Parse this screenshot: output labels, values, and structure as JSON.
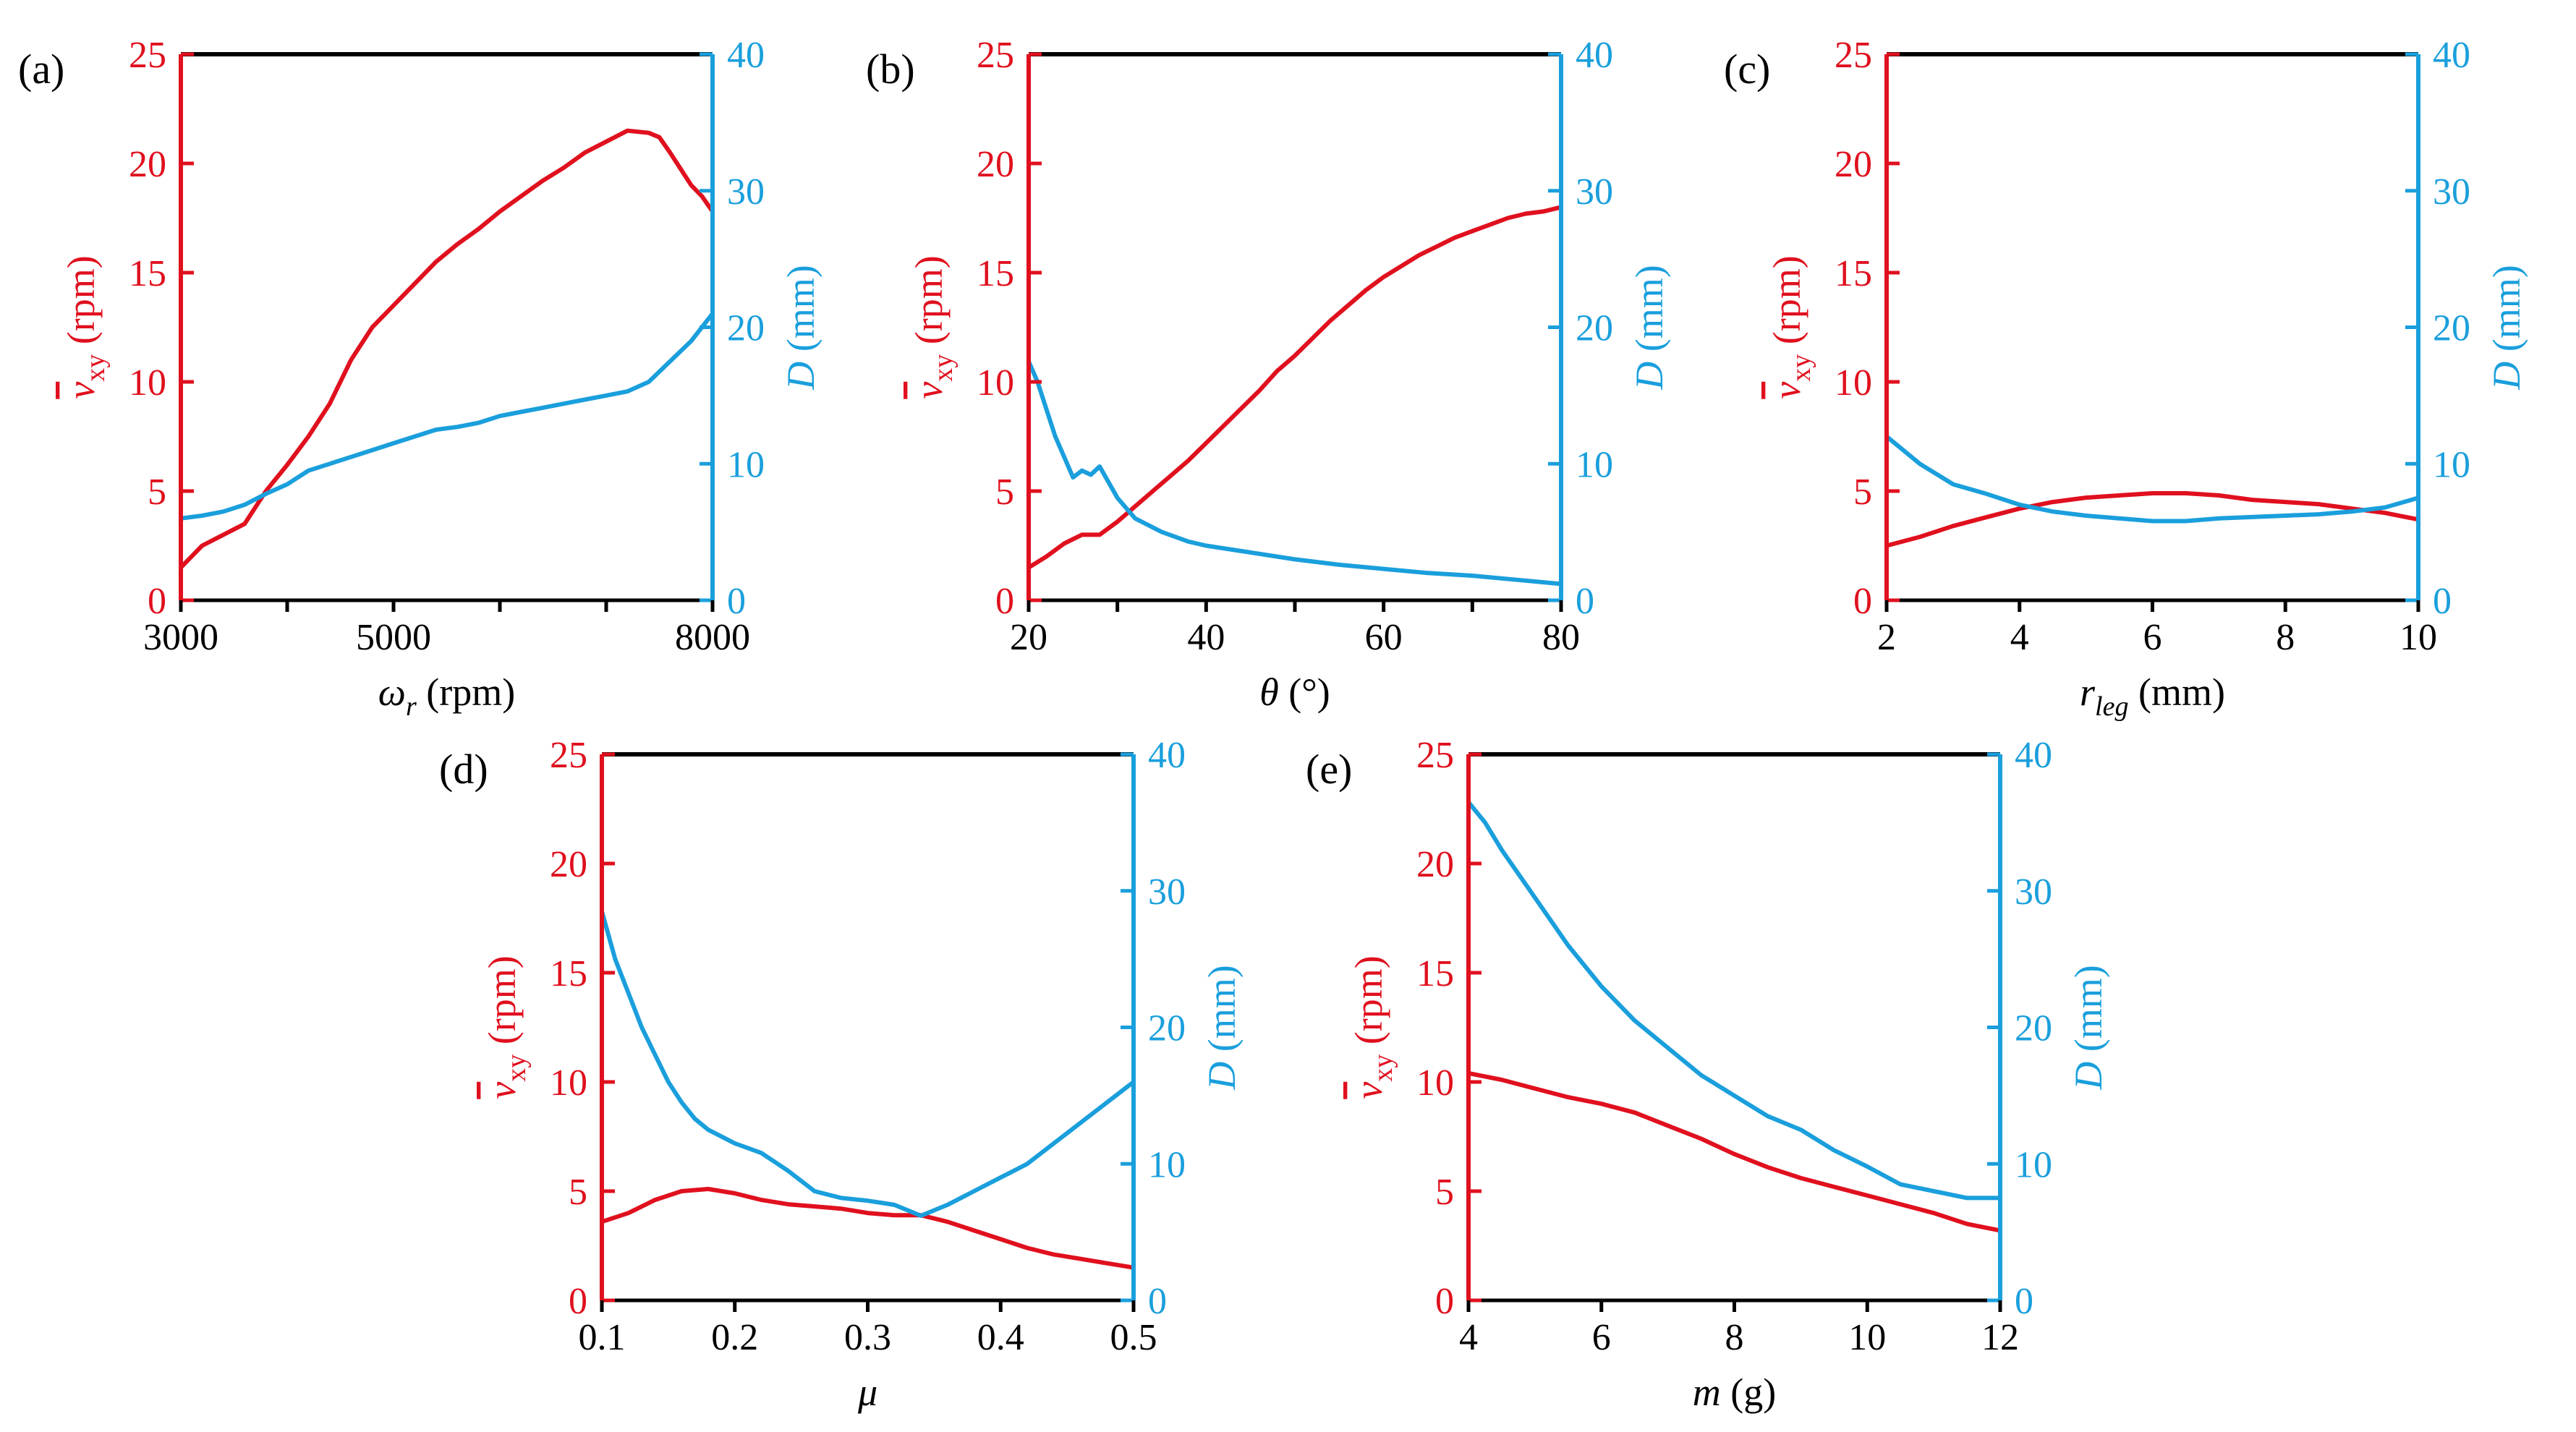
{
  "colors": {
    "left_axis": "#e0101e",
    "right_axis": "#1a9fdc",
    "frame": "#000000"
  },
  "left_ylabel_parts": {
    "symbol": "v",
    "sub": "xy",
    "unit": "(rpm)"
  },
  "right_ylabel_parts": {
    "symbol": "D",
    "unit": "(mm)"
  },
  "chart_data": [
    {
      "panel": "(a)",
      "type": "line",
      "xlabel_parts": {
        "symbol": "ω",
        "sub": "r",
        "unit": "(rpm)"
      },
      "xlim": [
        3000,
        8000
      ],
      "xticks": [
        3000,
        5000,
        8000
      ],
      "xminor": [
        4000,
        6000,
        7000
      ],
      "ylim_left": [
        0,
        25
      ],
      "yticks_left": [
        0,
        5,
        10,
        15,
        20,
        25
      ],
      "ylim_right": [
        0,
        40
      ],
      "yticks_right": [
        0,
        10,
        20,
        30,
        40
      ],
      "series": [
        {
          "name": "v_xy (rpm)",
          "axis": "left",
          "x": [
            3000,
            3200,
            3400,
            3600,
            3800,
            4000,
            4200,
            4400,
            4600,
            4800,
            5000,
            5200,
            5400,
            5600,
            5800,
            6000,
            6200,
            6400,
            6600,
            6800,
            7000,
            7200,
            7400,
            7500,
            7600,
            7800,
            7900,
            8000
          ],
          "y": [
            1.5,
            2.5,
            3.0,
            3.5,
            5.0,
            6.2,
            7.5,
            9.0,
            11.0,
            12.5,
            13.5,
            14.5,
            15.5,
            16.3,
            17.0,
            17.8,
            18.5,
            19.2,
            19.8,
            20.5,
            21.0,
            21.5,
            21.4,
            21.2,
            20.5,
            19.0,
            18.5,
            17.8
          ]
        },
        {
          "name": "D (mm)",
          "axis": "right",
          "x": [
            3000,
            3200,
            3400,
            3600,
            3800,
            4000,
            4200,
            4400,
            4600,
            4800,
            5000,
            5200,
            5400,
            5600,
            5800,
            6000,
            6200,
            6400,
            6600,
            6800,
            7000,
            7200,
            7400,
            7600,
            7800,
            8000
          ],
          "y": [
            6.0,
            6.2,
            6.5,
            7.0,
            7.8,
            8.5,
            9.5,
            10.0,
            10.5,
            11.0,
            11.5,
            12.0,
            12.5,
            12.7,
            13.0,
            13.5,
            13.8,
            14.1,
            14.4,
            14.7,
            15.0,
            15.3,
            16.0,
            17.5,
            19.0,
            21.0
          ]
        }
      ]
    },
    {
      "panel": "(b)",
      "type": "line",
      "xlabel_parts": {
        "symbol": "θ",
        "sub": "",
        "unit": "(°)"
      },
      "xlim": [
        20,
        80
      ],
      "xticks": [
        20,
        40,
        60,
        80
      ],
      "xminor": [
        30,
        50,
        70
      ],
      "ylim_left": [
        0,
        25
      ],
      "yticks_left": [
        0,
        5,
        10,
        15,
        20,
        25
      ],
      "ylim_right": [
        0,
        40
      ],
      "yticks_right": [
        0,
        10,
        20,
        30,
        40
      ],
      "series": [
        {
          "name": "v_xy (rpm)",
          "axis": "left",
          "x": [
            20,
            22,
            24,
            26,
            28,
            30,
            32,
            34,
            36,
            38,
            40,
            42,
            44,
            46,
            48,
            50,
            52,
            54,
            56,
            58,
            60,
            62,
            64,
            66,
            68,
            70,
            72,
            74,
            76,
            78,
            80
          ],
          "y": [
            1.5,
            2.0,
            2.6,
            3.0,
            3.0,
            3.6,
            4.3,
            5.0,
            5.7,
            6.4,
            7.2,
            8.0,
            8.8,
            9.6,
            10.5,
            11.2,
            12.0,
            12.8,
            13.5,
            14.2,
            14.8,
            15.3,
            15.8,
            16.2,
            16.6,
            16.9,
            17.2,
            17.5,
            17.7,
            17.8,
            18.0
          ]
        },
        {
          "name": "D (mm)",
          "axis": "right",
          "x": [
            20,
            21,
            22,
            23,
            24,
            25,
            26,
            27,
            28,
            30,
            32,
            35,
            38,
            40,
            45,
            50,
            55,
            60,
            65,
            70,
            75,
            80
          ],
          "y": [
            17.5,
            16.0,
            14.0,
            12.0,
            10.5,
            9.0,
            9.5,
            9.2,
            9.8,
            7.5,
            6.0,
            5.0,
            4.3,
            4.0,
            3.5,
            3.0,
            2.6,
            2.3,
            2.0,
            1.8,
            1.5,
            1.2
          ]
        }
      ]
    },
    {
      "panel": "(c)",
      "type": "line",
      "xlabel_parts": {
        "symbol": "r",
        "sub": "leg",
        "unit": "(mm)"
      },
      "xlim": [
        2,
        10
      ],
      "xticks": [
        2,
        4,
        6,
        8,
        10
      ],
      "xminor": [],
      "ylim_left": [
        0,
        25
      ],
      "yticks_left": [
        0,
        5,
        10,
        15,
        20,
        25
      ],
      "ylim_right": [
        0,
        40
      ],
      "yticks_right": [
        0,
        10,
        20,
        30,
        40
      ],
      "series": [
        {
          "name": "v_xy (rpm)",
          "axis": "left",
          "x": [
            2,
            2.5,
            3,
            3.5,
            4,
            4.5,
            5,
            5.5,
            6,
            6.5,
            7,
            7.5,
            8,
            8.5,
            9,
            9.5,
            10
          ],
          "y": [
            2.5,
            2.9,
            3.4,
            3.8,
            4.2,
            4.5,
            4.7,
            4.8,
            4.9,
            4.9,
            4.8,
            4.6,
            4.5,
            4.4,
            4.2,
            4.0,
            3.7
          ]
        },
        {
          "name": "D (mm)",
          "axis": "right",
          "x": [
            2,
            2.25,
            2.5,
            3,
            3.5,
            4,
            4.5,
            5,
            5.5,
            6,
            6.5,
            7,
            7.5,
            8,
            8.5,
            9,
            9.5,
            10
          ],
          "y": [
            12.0,
            11.0,
            10.0,
            8.5,
            7.8,
            7.0,
            6.5,
            6.2,
            6.0,
            5.8,
            5.8,
            6.0,
            6.1,
            6.2,
            6.3,
            6.5,
            6.8,
            7.5
          ]
        }
      ]
    },
    {
      "panel": "(d)",
      "type": "line",
      "xlabel_parts": {
        "symbol": "μ",
        "sub": "",
        "unit": ""
      },
      "xlim": [
        0.1,
        0.5
      ],
      "xticks": [
        0.1,
        0.2,
        0.3,
        0.4,
        0.5
      ],
      "xminor": [],
      "ylim_left": [
        0,
        25
      ],
      "yticks_left": [
        0,
        5,
        10,
        15,
        20,
        25
      ],
      "ylim_right": [
        0,
        40
      ],
      "yticks_right": [
        0,
        10,
        20,
        30,
        40
      ],
      "series": [
        {
          "name": "v_xy (rpm)",
          "axis": "left",
          "x": [
            0.1,
            0.12,
            0.14,
            0.16,
            0.18,
            0.2,
            0.22,
            0.24,
            0.26,
            0.28,
            0.3,
            0.32,
            0.34,
            0.36,
            0.38,
            0.4,
            0.42,
            0.44,
            0.46,
            0.48,
            0.5
          ],
          "y": [
            3.6,
            4.0,
            4.6,
            5.0,
            5.1,
            4.9,
            4.6,
            4.4,
            4.3,
            4.2,
            4.0,
            3.9,
            3.9,
            3.6,
            3.2,
            2.8,
            2.4,
            2.1,
            1.9,
            1.7,
            1.5
          ]
        },
        {
          "name": "D (mm)",
          "axis": "right",
          "x": [
            0.1,
            0.11,
            0.12,
            0.13,
            0.14,
            0.15,
            0.16,
            0.17,
            0.18,
            0.2,
            0.22,
            0.24,
            0.26,
            0.28,
            0.3,
            0.32,
            0.34,
            0.36,
            0.38,
            0.4,
            0.42,
            0.44,
            0.46,
            0.48,
            0.5
          ],
          "y": [
            28.5,
            25.0,
            22.5,
            20.0,
            18.0,
            16.0,
            14.5,
            13.3,
            12.5,
            11.5,
            10.8,
            9.5,
            8.0,
            7.5,
            7.3,
            7.0,
            6.2,
            7.0,
            8.0,
            9.0,
            10.0,
            11.5,
            13.0,
            14.5,
            16.0
          ]
        }
      ]
    },
    {
      "panel": "(e)",
      "type": "line",
      "xlabel_parts": {
        "symbol": "m",
        "sub": "",
        "unit": "(g)"
      },
      "xlim": [
        4,
        12
      ],
      "xticks": [
        4,
        6,
        8,
        10,
        12
      ],
      "xminor": [],
      "ylim_left": [
        0,
        25
      ],
      "yticks_left": [
        0,
        5,
        10,
        15,
        20,
        25
      ],
      "ylim_right": [
        0,
        40
      ],
      "yticks_right": [
        0,
        10,
        20,
        30,
        40
      ],
      "series": [
        {
          "name": "v_xy (rpm)",
          "axis": "left",
          "x": [
            4,
            4.5,
            5,
            5.5,
            6,
            6.5,
            7,
            7.5,
            8,
            8.5,
            9,
            9.5,
            10,
            10.5,
            11,
            11.5,
            12
          ],
          "y": [
            10.4,
            10.1,
            9.7,
            9.3,
            9.0,
            8.6,
            8.0,
            7.4,
            6.7,
            6.1,
            5.6,
            5.2,
            4.8,
            4.4,
            4.0,
            3.5,
            3.2
          ]
        },
        {
          "name": "D (mm)",
          "axis": "right",
          "x": [
            4,
            4.25,
            4.5,
            5,
            5.5,
            6,
            6.5,
            7,
            7.5,
            8,
            8.5,
            9,
            9.5,
            10,
            10.5,
            11,
            11.5,
            12
          ],
          "y": [
            36.5,
            35.0,
            33.0,
            29.5,
            26.0,
            23.0,
            20.5,
            18.5,
            16.5,
            15.0,
            13.5,
            12.5,
            11.0,
            9.8,
            8.5,
            8.0,
            7.5,
            7.5
          ]
        }
      ]
    }
  ]
}
